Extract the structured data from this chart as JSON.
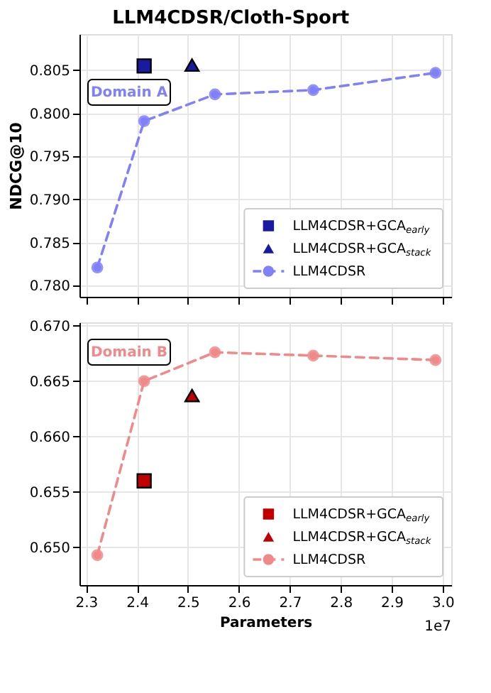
{
  "chart_data": [
    {
      "type": "line",
      "title": "LLM4CDSR/Cloth-Sport",
      "ylabel": "NDCG@10",
      "annotations": [
        "Domain A"
      ],
      "legend": "bottom right",
      "grid": true,
      "tick_labels": "y",
      "xlim": [
        2.287,
        3.017
      ],
      "ylim": [
        0.7787,
        0.8092
      ],
      "xticks": [
        2.3,
        2.4,
        2.5,
        2.6,
        2.7,
        2.8,
        2.9,
        3
      ],
      "yticks": [
        {
          "value": 0.78,
          "label": "0.780"
        },
        {
          "value": 0.785,
          "label": "0.785"
        },
        {
          "value": 0.79,
          "label": "0.790"
        },
        {
          "value": 0.795,
          "label": "0.795"
        },
        {
          "value": 0.8,
          "label": "0.800"
        },
        {
          "value": 0.805,
          "label": "0.805"
        }
      ],
      "series": [
        {
          "name": "LLM4CDSR+GCA$_{early}$",
          "type": "scatter",
          "marker": "square",
          "color": "#1a1aa0",
          "x": [
            2.414
          ],
          "values": [
            0.8055
          ]
        },
        {
          "name": "LLM4CDSR+GCA$_{stack}$",
          "type": "scatter",
          "marker": "triangle",
          "color": "#1a1aa0",
          "x": [
            2.508
          ],
          "values": [
            0.8056
          ]
        },
        {
          "name": "LLM4CDSR",
          "marker": "circle",
          "line_style": "dashed",
          "color": "#8080f8",
          "x": [
            2.322,
            2.414,
            2.553,
            2.746,
            2.986
          ],
          "values": [
            0.7821,
            0.7991,
            0.8022,
            0.8027,
            0.8047
          ]
        }
      ]
    },
    {
      "type": "line",
      "xlabel": "Parameters",
      "annotations": [
        "Domain B",
        "1e7"
      ],
      "legend": "bottom right",
      "grid": true,
      "xlim": [
        2.287,
        3.017
      ],
      "ylim": [
        0.6466,
        0.6703
      ],
      "xticks": [
        2.3,
        2.4,
        2.5,
        2.6,
        2.7,
        2.8,
        2.9,
        {
          "value": 3,
          "label": "3.0"
        }
      ],
      "yticks": [
        {
          "value": 0.65,
          "label": "0.650"
        },
        {
          "value": 0.655,
          "label": "0.655"
        },
        {
          "value": 0.66,
          "label": "0.660"
        },
        {
          "value": 0.665,
          "label": "0.665"
        },
        {
          "value": 0.67,
          "label": "0.670"
        }
      ],
      "series": [
        {
          "name": "LLM4CDSR+GCA$_{early}$",
          "type": "scatter",
          "marker": "square",
          "color": "#c00000",
          "x": [
            2.414
          ],
          "values": [
            0.656
          ]
        },
        {
          "name": "LLM4CDSR+GCA$_{stack}$",
          "type": "scatter",
          "marker": "triangle",
          "color": "#c00000",
          "x": [
            2.508
          ],
          "values": [
            0.6637
          ]
        },
        {
          "name": "LLM4CDSR",
          "marker": "circle",
          "line_style": "dashed",
          "color": "#f08a8a",
          "x": [
            2.322,
            2.414,
            2.553,
            2.746,
            2.986
          ],
          "values": [
            0.6493,
            0.665,
            0.6676,
            0.6673,
            0.6669
          ]
        }
      ]
    }
  ]
}
